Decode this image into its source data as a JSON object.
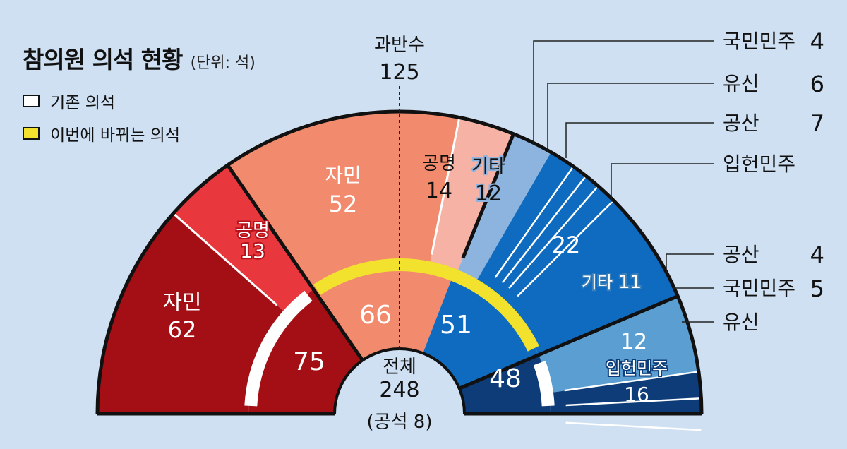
{
  "title": "참의원 의석 현황",
  "unit": "(단위: 석)",
  "legend": {
    "existing": "기존 의석",
    "changing": "이번에 바뀌는 의석"
  },
  "colors": {
    "ldp_outer": "#a30f14",
    "komeito_outer": "#e8383d",
    "ldp_inner": "#f28b6e",
    "komeito_inner": "#f6b3a5",
    "other_inner": "#8db4df",
    "opp_inner": "#0f6bbf",
    "other_outer": "#5b9fd2",
    "opp_outer": "#0d3c78",
    "inner_ring_left": "#a30f14",
    "inner_ring_mid": "#f28b6e",
    "inner_ring_right": "#0f6bbf",
    "inner_ring_far": "#0d3c78",
    "ring_changing": "#f2e22e",
    "ring_existing": "#ffffff",
    "background": "#cfe0f2"
  },
  "chart_data": {
    "type": "parliament",
    "total": {
      "label": "전체",
      "value": 248,
      "vacant_label": "(공석 8)",
      "vacant": 8
    },
    "majority": {
      "label": "과반수",
      "value": 125
    },
    "inner_totals": [
      {
        "group": "existing",
        "value": 75
      },
      {
        "group": "changing",
        "value": 66
      },
      {
        "group": "changing",
        "value": 51
      },
      {
        "group": "existing",
        "value": 48
      }
    ],
    "outer_existing": [
      {
        "name": "자민",
        "value": 62,
        "color": "#a30f14"
      },
      {
        "name": "공명",
        "value": 13,
        "color": "#e8383d"
      }
    ],
    "inner_changing": [
      {
        "name": "자민",
        "value": 52,
        "color": "#f28b6e"
      },
      {
        "name": "공명",
        "value": 14,
        "color": "#f6b3a5"
      },
      {
        "name": "기타",
        "value": 12,
        "color": "#8db4df"
      },
      {
        "name": "",
        "value": 22,
        "color": "#0f6bbf"
      }
    ],
    "opp_changing_breakdown": [
      {
        "name": "국민민주",
        "value": 4
      },
      {
        "name": "유신",
        "value": 6
      },
      {
        "name": "공산",
        "value": 7
      },
      {
        "name": "입헌민주",
        "value": 22
      }
    ],
    "outer_existing_opp": [
      {
        "name": "기타",
        "value": 11,
        "color": "#5b9fd2"
      },
      {
        "name": "",
        "value": 12,
        "color": "#0d3c78"
      },
      {
        "name": "입헌민주",
        "value": 16,
        "color": "#0d3c78"
      }
    ],
    "opp_existing_breakdown": [
      {
        "name": "공산",
        "value": 4
      },
      {
        "name": "국민민주",
        "value": 5
      },
      {
        "name": "유신",
        "value": ""
      }
    ]
  }
}
